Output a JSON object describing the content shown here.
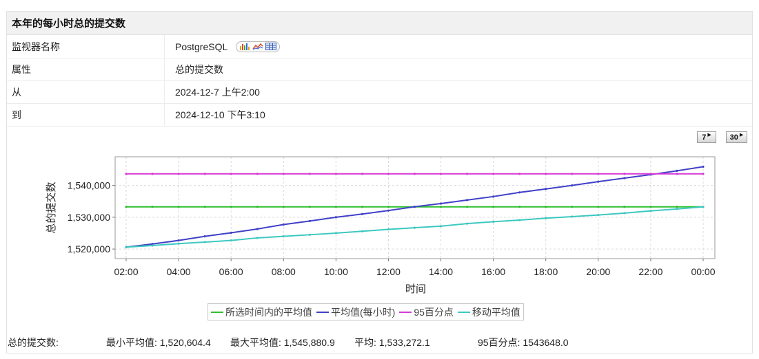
{
  "panel": {
    "title": "本年的每小时总的提交数",
    "rows": [
      {
        "label": "监视器名称",
        "value": "PostgreSQL"
      },
      {
        "label": "属性",
        "value": "总的提交数"
      },
      {
        "label": "从",
        "value": "2024-12-7 上午2:00"
      },
      {
        "label": "到",
        "value": "2024-12-10 下午3:10"
      }
    ],
    "type_icons": [
      "bar-chart-icon",
      "line-chart-icon",
      "table-icon"
    ]
  },
  "range_buttons": [
    {
      "label": "7"
    },
    {
      "label": "30"
    }
  ],
  "chart_data": {
    "type": "line",
    "title": "",
    "xlabel": "时间",
    "ylabel": "总的提交数",
    "ylim": [
      1517000,
      1549000
    ],
    "y_ticks": [
      1520000,
      1530000,
      1540000
    ],
    "y_tick_labels": [
      "1,520,000",
      "1,530,000",
      "1,540,000"
    ],
    "x": [
      "02:00",
      "03:00",
      "04:00",
      "05:00",
      "06:00",
      "07:00",
      "08:00",
      "09:00",
      "10:00",
      "11:00",
      "12:00",
      "13:00",
      "14:00",
      "15:00",
      "16:00",
      "17:00",
      "18:00",
      "19:00",
      "20:00",
      "21:00",
      "22:00",
      "23:00",
      "00:00"
    ],
    "x_tick_labels": [
      "02:00",
      "04:00",
      "06:00",
      "08:00",
      "10:00",
      "12:00",
      "14:00",
      "16:00",
      "18:00",
      "20:00",
      "22:00",
      "00:00"
    ],
    "grid": true,
    "legend": "bottom",
    "series": [
      {
        "name": "所选时间内的平均值",
        "color": "#2fbf2f",
        "values": [
          1533272,
          1533272,
          1533272,
          1533272,
          1533272,
          1533272,
          1533272,
          1533272,
          1533272,
          1533272,
          1533272,
          1533272,
          1533272,
          1533272,
          1533272,
          1533272,
          1533272,
          1533272,
          1533272,
          1533272,
          1533272,
          1533272,
          1533272
        ]
      },
      {
        "name": "平均值(每小时)",
        "color": "#4040c8",
        "values": [
          1520604,
          1521600,
          1522700,
          1524000,
          1525100,
          1526300,
          1527700,
          1528800,
          1530000,
          1531000,
          1532100,
          1533300,
          1534300,
          1535400,
          1536500,
          1537800,
          1538900,
          1540000,
          1541200,
          1542300,
          1543400,
          1544600,
          1545881
        ]
      },
      {
        "name": "95百分点",
        "color": "#d63ad6",
        "values": [
          1543648,
          1543648,
          1543648,
          1543648,
          1543648,
          1543648,
          1543648,
          1543648,
          1543648,
          1543648,
          1543648,
          1543648,
          1543648,
          1543648,
          1543648,
          1543648,
          1543648,
          1543648,
          1543648,
          1543648,
          1543648,
          1543648,
          1543648
        ]
      },
      {
        "name": "移动平均值",
        "color": "#3cc8c0",
        "values": [
          1520604,
          1521100,
          1521700,
          1522200,
          1522700,
          1523500,
          1524000,
          1524500,
          1525000,
          1525600,
          1526200,
          1526700,
          1527200,
          1528000,
          1528600,
          1529100,
          1529700,
          1530200,
          1530700,
          1531300,
          1532000,
          1532600,
          1533272
        ]
      }
    ]
  },
  "footer": {
    "label": "总的提交数:",
    "min_avg": "最小平均值:  1,520,604.4",
    "max_avg": "最大平均值:  1,545,880.9",
    "avg": "平均:  1,533,272.1",
    "p95": "95百分点:  1543648.0"
  }
}
